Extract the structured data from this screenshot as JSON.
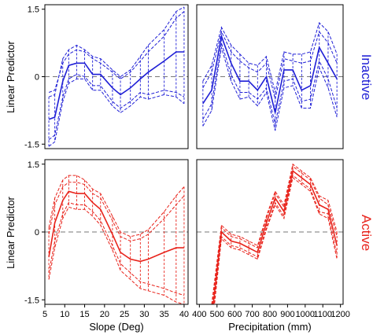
{
  "figure": {
    "shared_ylabel": "Linear Predictor",
    "row_labels": [
      {
        "text": "Inactive",
        "color": "#1f1fd6"
      },
      {
        "text": "Active",
        "color": "#e8231b"
      }
    ]
  },
  "chart_data": [
    {
      "id": "inactive-slope",
      "type": "line",
      "title": "",
      "xlabel": "",
      "ylabel": "Linear Predictor",
      "xlim": [
        5,
        41
      ],
      "ylim": [
        -1.6,
        1.6
      ],
      "xticks": [],
      "yticks": [
        -1.5,
        0,
        1.5
      ],
      "ytick_labels": [
        "-1.5",
        "0",
        "1.5"
      ],
      "reference_line": 0,
      "color": "#1f1fd6",
      "x": [
        6,
        7.5,
        9.5,
        11,
        13,
        15,
        17,
        19,
        22,
        24,
        26.5,
        29,
        31,
        35,
        38,
        40
      ],
      "series": [
        {
          "name": "",
          "values": [
            -0.95,
            -0.9,
            -0.1,
            0.25,
            0.3,
            0.3,
            0.05,
            0.05,
            -0.25,
            -0.4,
            -0.25,
            -0.05,
            0.1,
            0.35,
            0.55,
            0.55
          ]
        },
        {
          "name": "",
          "values": [
            -0.45,
            -0.4,
            0.4,
            0.6,
            0.7,
            0.6,
            0.45,
            0.4,
            0.15,
            0.0,
            0.15,
            0.45,
            0.7,
            1.05,
            1.45,
            1.55
          ]
        },
        {
          "name": "",
          "values": [
            -0.35,
            -0.3,
            0.3,
            0.5,
            0.6,
            0.55,
            0.4,
            0.3,
            0.1,
            -0.05,
            0.1,
            0.35,
            0.55,
            0.9,
            1.3,
            1.45
          ]
        },
        {
          "name": "",
          "values": [
            -1.55,
            -1.45,
            -0.55,
            -0.15,
            -0.05,
            -0.05,
            -0.3,
            -0.3,
            -0.65,
            -0.8,
            -0.65,
            -0.45,
            -0.5,
            -0.4,
            -0.45,
            -0.6
          ]
        },
        {
          "name": "",
          "values": [
            -1.4,
            -1.3,
            -0.45,
            -0.05,
            0.05,
            0.0,
            -0.2,
            -0.2,
            -0.55,
            -0.7,
            -0.55,
            -0.35,
            -0.4,
            -0.3,
            -0.35,
            -0.45
          ]
        }
      ]
    },
    {
      "id": "inactive-precip",
      "type": "line",
      "title": "",
      "xlabel": "",
      "ylabel": "",
      "xlim": [
        385,
        1215
      ],
      "ylim": [
        -1.6,
        1.6
      ],
      "xticks": [],
      "yticks": [],
      "reference_line": 0,
      "color": "#1f1fd6",
      "x": [
        420,
        470,
        525,
        580,
        630,
        680,
        730,
        780,
        830,
        880,
        930,
        980,
        1030,
        1080,
        1130,
        1180
      ],
      "series": [
        {
          "name": "",
          "values": [
            -0.6,
            -0.3,
            0.9,
            0.3,
            -0.1,
            -0.1,
            -0.3,
            0.0,
            -0.8,
            0.15,
            0.15,
            -0.3,
            -0.2,
            0.65,
            0.3,
            -0.05
          ]
        },
        {
          "name": "",
          "values": [
            -0.1,
            0.25,
            1.1,
            0.7,
            0.5,
            0.3,
            0.25,
            0.45,
            -0.35,
            0.55,
            0.5,
            0.5,
            0.55,
            1.2,
            1.0,
            0.5
          ]
        },
        {
          "name": "",
          "values": [
            -0.25,
            0.1,
            1.0,
            0.55,
            0.35,
            0.2,
            0.1,
            0.3,
            -0.5,
            0.4,
            0.35,
            0.3,
            0.35,
            1.0,
            0.75,
            0.3
          ]
        },
        {
          "name": "",
          "values": [
            -1.1,
            -0.75,
            0.65,
            -0.1,
            -0.5,
            -0.45,
            -0.65,
            -0.35,
            -1.2,
            -0.25,
            -0.2,
            -0.7,
            -0.7,
            0.2,
            -0.25,
            -0.9
          ]
        },
        {
          "name": "",
          "values": [
            -0.95,
            -0.6,
            0.75,
            0.05,
            -0.35,
            -0.35,
            -0.5,
            -0.25,
            -1.05,
            -0.1,
            -0.05,
            -0.55,
            -0.5,
            0.35,
            -0.05,
            -0.7
          ]
        }
      ]
    },
    {
      "id": "active-slope",
      "type": "line",
      "title": "",
      "xlabel": "Slope (Deg)",
      "ylabel": "Linear Predictor",
      "xlim": [
        5,
        41
      ],
      "ylim": [
        -1.6,
        1.6
      ],
      "xticks": [
        5,
        10,
        15,
        20,
        25,
        30,
        35,
        40
      ],
      "xtick_labels": [
        "5",
        "10",
        "15",
        "20",
        "25",
        "30",
        "35",
        "40"
      ],
      "yticks": [
        -1.5,
        0,
        1.5
      ],
      "ytick_labels": [
        "-1.5",
        "0",
        "1.5"
      ],
      "reference_line": 0,
      "color": "#e8231b",
      "x": [
        6,
        7.5,
        9.5,
        11,
        13,
        15,
        17,
        19,
        22,
        24,
        26.5,
        29,
        31,
        35,
        38,
        40
      ],
      "series": [
        {
          "name": "",
          "values": [
            -0.55,
            0.2,
            0.7,
            0.9,
            0.85,
            0.85,
            0.65,
            0.5,
            -0.05,
            -0.45,
            -0.6,
            -0.65,
            -0.6,
            -0.45,
            -0.35,
            -0.35
          ]
        },
        {
          "name": "",
          "values": [
            0.1,
            0.75,
            1.15,
            1.25,
            1.25,
            1.15,
            0.95,
            0.85,
            0.35,
            0.0,
            -0.1,
            -0.05,
            0.05,
            0.45,
            0.8,
            1.0
          ]
        },
        {
          "name": "",
          "values": [
            -0.05,
            0.6,
            1.0,
            1.1,
            1.1,
            1.05,
            0.85,
            0.75,
            0.25,
            -0.1,
            -0.2,
            -0.15,
            -0.05,
            0.3,
            0.6,
            0.8
          ]
        },
        {
          "name": "",
          "values": [
            -1.05,
            -0.35,
            0.3,
            0.55,
            0.5,
            0.5,
            0.35,
            0.15,
            -0.4,
            -0.85,
            -1.05,
            -1.25,
            -1.3,
            -1.4,
            -1.55,
            -1.6
          ]
        },
        {
          "name": "",
          "values": [
            -0.9,
            -0.2,
            0.4,
            0.65,
            0.6,
            0.6,
            0.45,
            0.25,
            -0.3,
            -0.7,
            -0.9,
            -1.1,
            -1.15,
            -1.25,
            -1.35,
            -1.4
          ]
        }
      ]
    },
    {
      "id": "active-precip",
      "type": "line",
      "title": "",
      "xlabel": "Precipitation (mm)",
      "ylabel": "",
      "xlim": [
        385,
        1215
      ],
      "ylim": [
        -1.6,
        1.6
      ],
      "xticks": [
        400,
        500,
        600,
        700,
        800,
        900,
        1000,
        1100,
        1200
      ],
      "xtick_labels": [
        "400",
        "500",
        "600",
        "700",
        "800",
        "900",
        "1000",
        "1100",
        "1200"
      ],
      "yticks": [],
      "reference_line": 0,
      "color": "#e8231b",
      "x": [
        470,
        525,
        580,
        630,
        680,
        730,
        780,
        830,
        880,
        930,
        980,
        1030,
        1080,
        1130,
        1180
      ],
      "series": [
        {
          "name": "",
          "values": [
            -1.9,
            0.0,
            -0.2,
            -0.25,
            -0.35,
            -0.45,
            0.2,
            0.75,
            0.45,
            1.35,
            1.2,
            1.05,
            0.6,
            0.5,
            -0.3
          ]
        },
        {
          "name": "",
          "values": [
            -1.6,
            0.15,
            -0.05,
            -0.1,
            -0.2,
            -0.3,
            0.35,
            0.9,
            0.6,
            1.5,
            1.35,
            1.2,
            0.8,
            0.7,
            0.0
          ]
        },
        {
          "name": "",
          "values": [
            -1.7,
            0.1,
            -0.1,
            -0.15,
            -0.25,
            -0.35,
            0.3,
            0.85,
            0.55,
            1.45,
            1.3,
            1.15,
            0.75,
            0.6,
            -0.1
          ]
        },
        {
          "name": "",
          "values": [
            -2.2,
            -0.15,
            -0.35,
            -0.4,
            -0.5,
            -0.6,
            0.05,
            0.6,
            0.3,
            1.2,
            1.05,
            0.9,
            0.4,
            0.3,
            -0.6
          ]
        },
        {
          "name": "",
          "values": [
            -2.1,
            -0.1,
            -0.3,
            -0.35,
            -0.45,
            -0.55,
            0.1,
            0.65,
            0.35,
            1.25,
            1.1,
            0.95,
            0.45,
            0.4,
            -0.5
          ]
        }
      ]
    }
  ]
}
